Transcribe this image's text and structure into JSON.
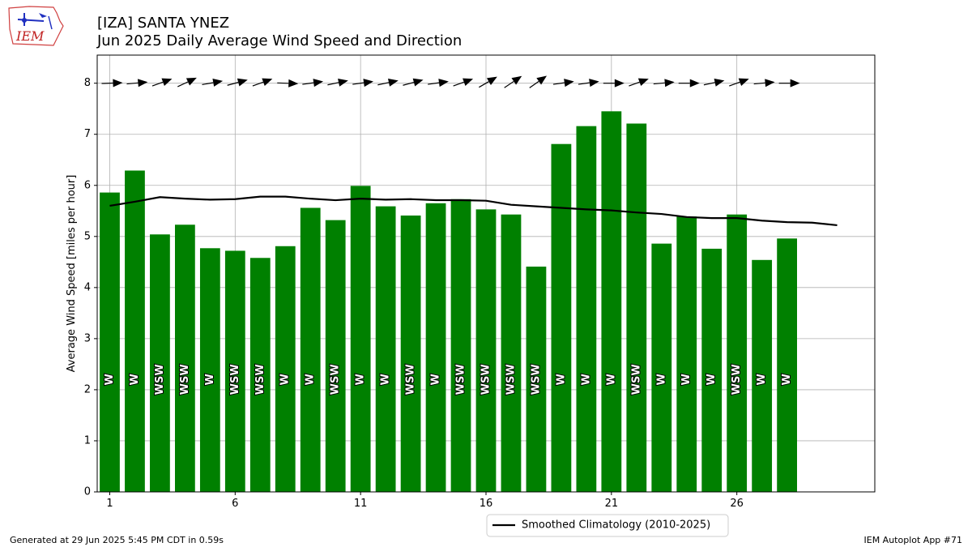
{
  "header": {
    "logo_text": "IEM",
    "title_line1": "[IZA] SANTA YNEZ",
    "title_line2": "Jun 2025 Daily Average Wind Speed and Direction"
  },
  "footer": {
    "left": "Generated at 29 Jun 2025 5:45 PM CDT in 0.59s",
    "right": "IEM Autoplot App #71"
  },
  "chart_data": {
    "type": "bar",
    "title": "Jun 2025 Daily Average Wind Speed and Direction",
    "ylabel": "Average Wind Speed [miles per hour]",
    "xlabel": "",
    "xlim": [
      0.5,
      31.5
    ],
    "ylim": [
      0,
      8.55
    ],
    "xticks": [
      1,
      6,
      11,
      16,
      21,
      26
    ],
    "yticks": [
      0,
      1,
      2,
      3,
      4,
      5,
      6,
      7,
      8
    ],
    "grid": true,
    "legend_position": "bottom-center",
    "bar_color": "#008000",
    "days": [
      1,
      2,
      3,
      4,
      5,
      6,
      7,
      8,
      9,
      10,
      11,
      12,
      13,
      14,
      15,
      16,
      17,
      18,
      19,
      20,
      21,
      22,
      23,
      24,
      25,
      26,
      27,
      28
    ],
    "values": [
      5.86,
      6.29,
      5.04,
      5.23,
      4.77,
      4.72,
      4.58,
      4.81,
      5.56,
      5.32,
      5.99,
      5.59,
      5.41,
      5.65,
      5.73,
      5.53,
      5.43,
      4.41,
      6.81,
      7.16,
      7.45,
      7.21,
      4.86,
      5.39,
      4.76,
      5.43,
      4.54,
      4.96
    ],
    "directions": [
      "W",
      "W",
      "WSW",
      "WSW",
      "W",
      "WSW",
      "WSW",
      "W",
      "W",
      "WSW",
      "W",
      "W",
      "WSW",
      "W",
      "WSW",
      "WSW",
      "WSW",
      "WSW",
      "W",
      "W",
      "W",
      "WSW",
      "W",
      "W",
      "W",
      "WSW",
      "W",
      "W"
    ],
    "arrow_degrees": [
      268,
      265,
      250,
      245,
      260,
      255,
      250,
      272,
      262,
      258,
      262,
      258,
      255,
      262,
      250,
      240,
      236,
      235,
      262,
      262,
      270,
      250,
      265,
      270,
      258,
      250,
      265,
      270
    ],
    "series": [
      {
        "name": "Smoothed Climatology (2010-2025)",
        "type": "line",
        "color": "#000000",
        "x": [
          1,
          2,
          3,
          4,
          5,
          6,
          7,
          8,
          9,
          10,
          11,
          12,
          13,
          14,
          15,
          16,
          17,
          18,
          19,
          20,
          21,
          22,
          23,
          24,
          25,
          26,
          27,
          28,
          29,
          30
        ],
        "values": [
          5.6,
          5.68,
          5.77,
          5.74,
          5.72,
          5.73,
          5.78,
          5.78,
          5.74,
          5.71,
          5.74,
          5.72,
          5.73,
          5.71,
          5.71,
          5.7,
          5.62,
          5.59,
          5.56,
          5.53,
          5.51,
          5.47,
          5.44,
          5.38,
          5.36,
          5.36,
          5.31,
          5.28,
          5.27,
          5.22
        ]
      }
    ]
  }
}
